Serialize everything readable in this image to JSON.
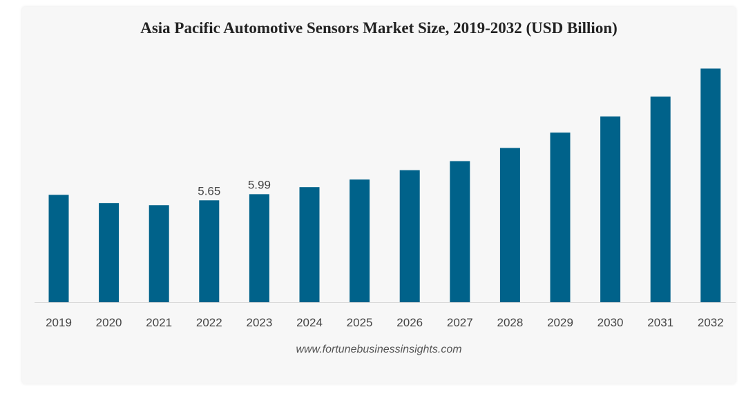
{
  "chart_data": {
    "type": "bar",
    "title": "Asia Pacific Automotive Sensors Market Size, 2019-2032 (USD Billion)",
    "xlabel": "",
    "ylabel": "",
    "categories": [
      "2019",
      "2020",
      "2021",
      "2022",
      "2023",
      "2024",
      "2025",
      "2026",
      "2027",
      "2028",
      "2029",
      "2030",
      "2031",
      "2032"
    ],
    "values": [
      5.95,
      5.5,
      5.38,
      5.65,
      5.99,
      6.38,
      6.8,
      7.32,
      7.82,
      8.55,
      9.4,
      10.3,
      11.4,
      12.95
    ],
    "data_labels": [
      "",
      "",
      "",
      "5.65",
      "5.99",
      "",
      "",
      "",
      "",
      "",
      "",
      "",
      "",
      ""
    ],
    "ylim": [
      0,
      13.5
    ],
    "grid": false,
    "bar_color": "#00628a"
  },
  "source": "www.fortunebusinessinsights.com",
  "colors": {
    "card_background": "#f7f7f7",
    "axis": "#d9d9d9",
    "tick_label": "#444444"
  }
}
